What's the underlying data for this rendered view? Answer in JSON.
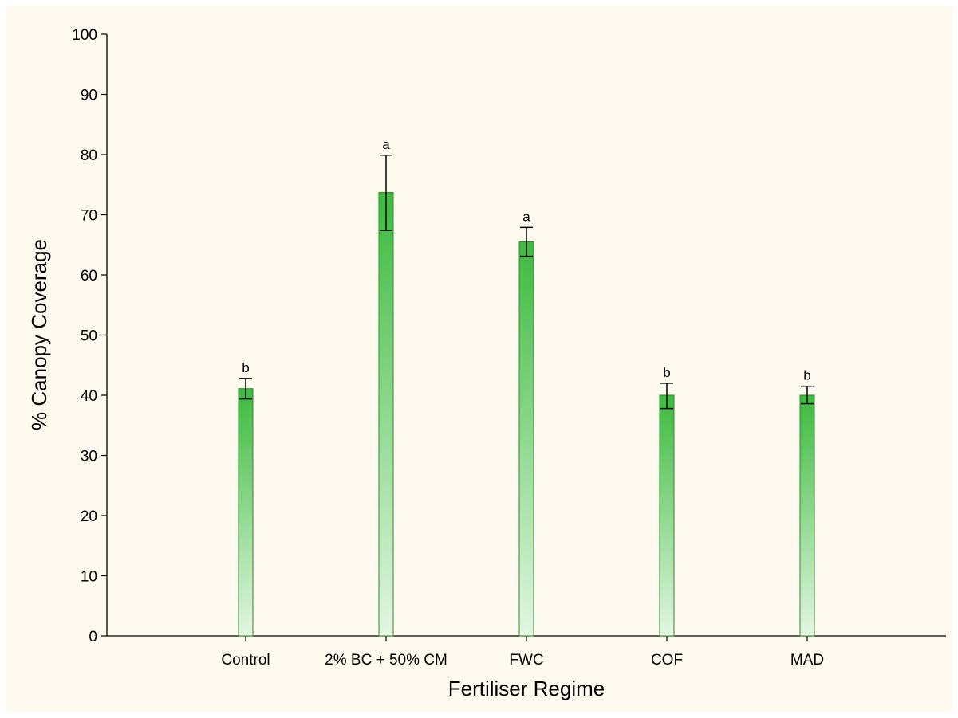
{
  "chart_data": {
    "type": "bar",
    "title": "",
    "xlabel": "Fertiliser Regime",
    "ylabel": "% Canopy Coverage",
    "ylim": [
      0,
      100
    ],
    "yticks": [
      0,
      10,
      20,
      30,
      40,
      50,
      60,
      70,
      80,
      90,
      100
    ],
    "categories": [
      "Control",
      "2% BC + 50% CM",
      "FWC",
      "COF",
      "MAD"
    ],
    "series": [
      {
        "values": [
          41.1,
          73.7,
          65.5,
          40.0,
          40.0
        ],
        "error_low": [
          39.4,
          67.4,
          63.1,
          37.8,
          38.6
        ],
        "error_high": [
          42.8,
          79.9,
          67.9,
          42.0,
          41.5
        ],
        "significance_labels": [
          "b",
          "a",
          "a",
          "b",
          "b"
        ]
      }
    ],
    "grid": false,
    "legend": "none",
    "colors": {
      "bar_top": "#3dba3d",
      "bar_bottom": "#e3f6e3",
      "bar_edge": "#2e8b2e",
      "background": "#fffaf0",
      "axis": "#000000"
    }
  }
}
